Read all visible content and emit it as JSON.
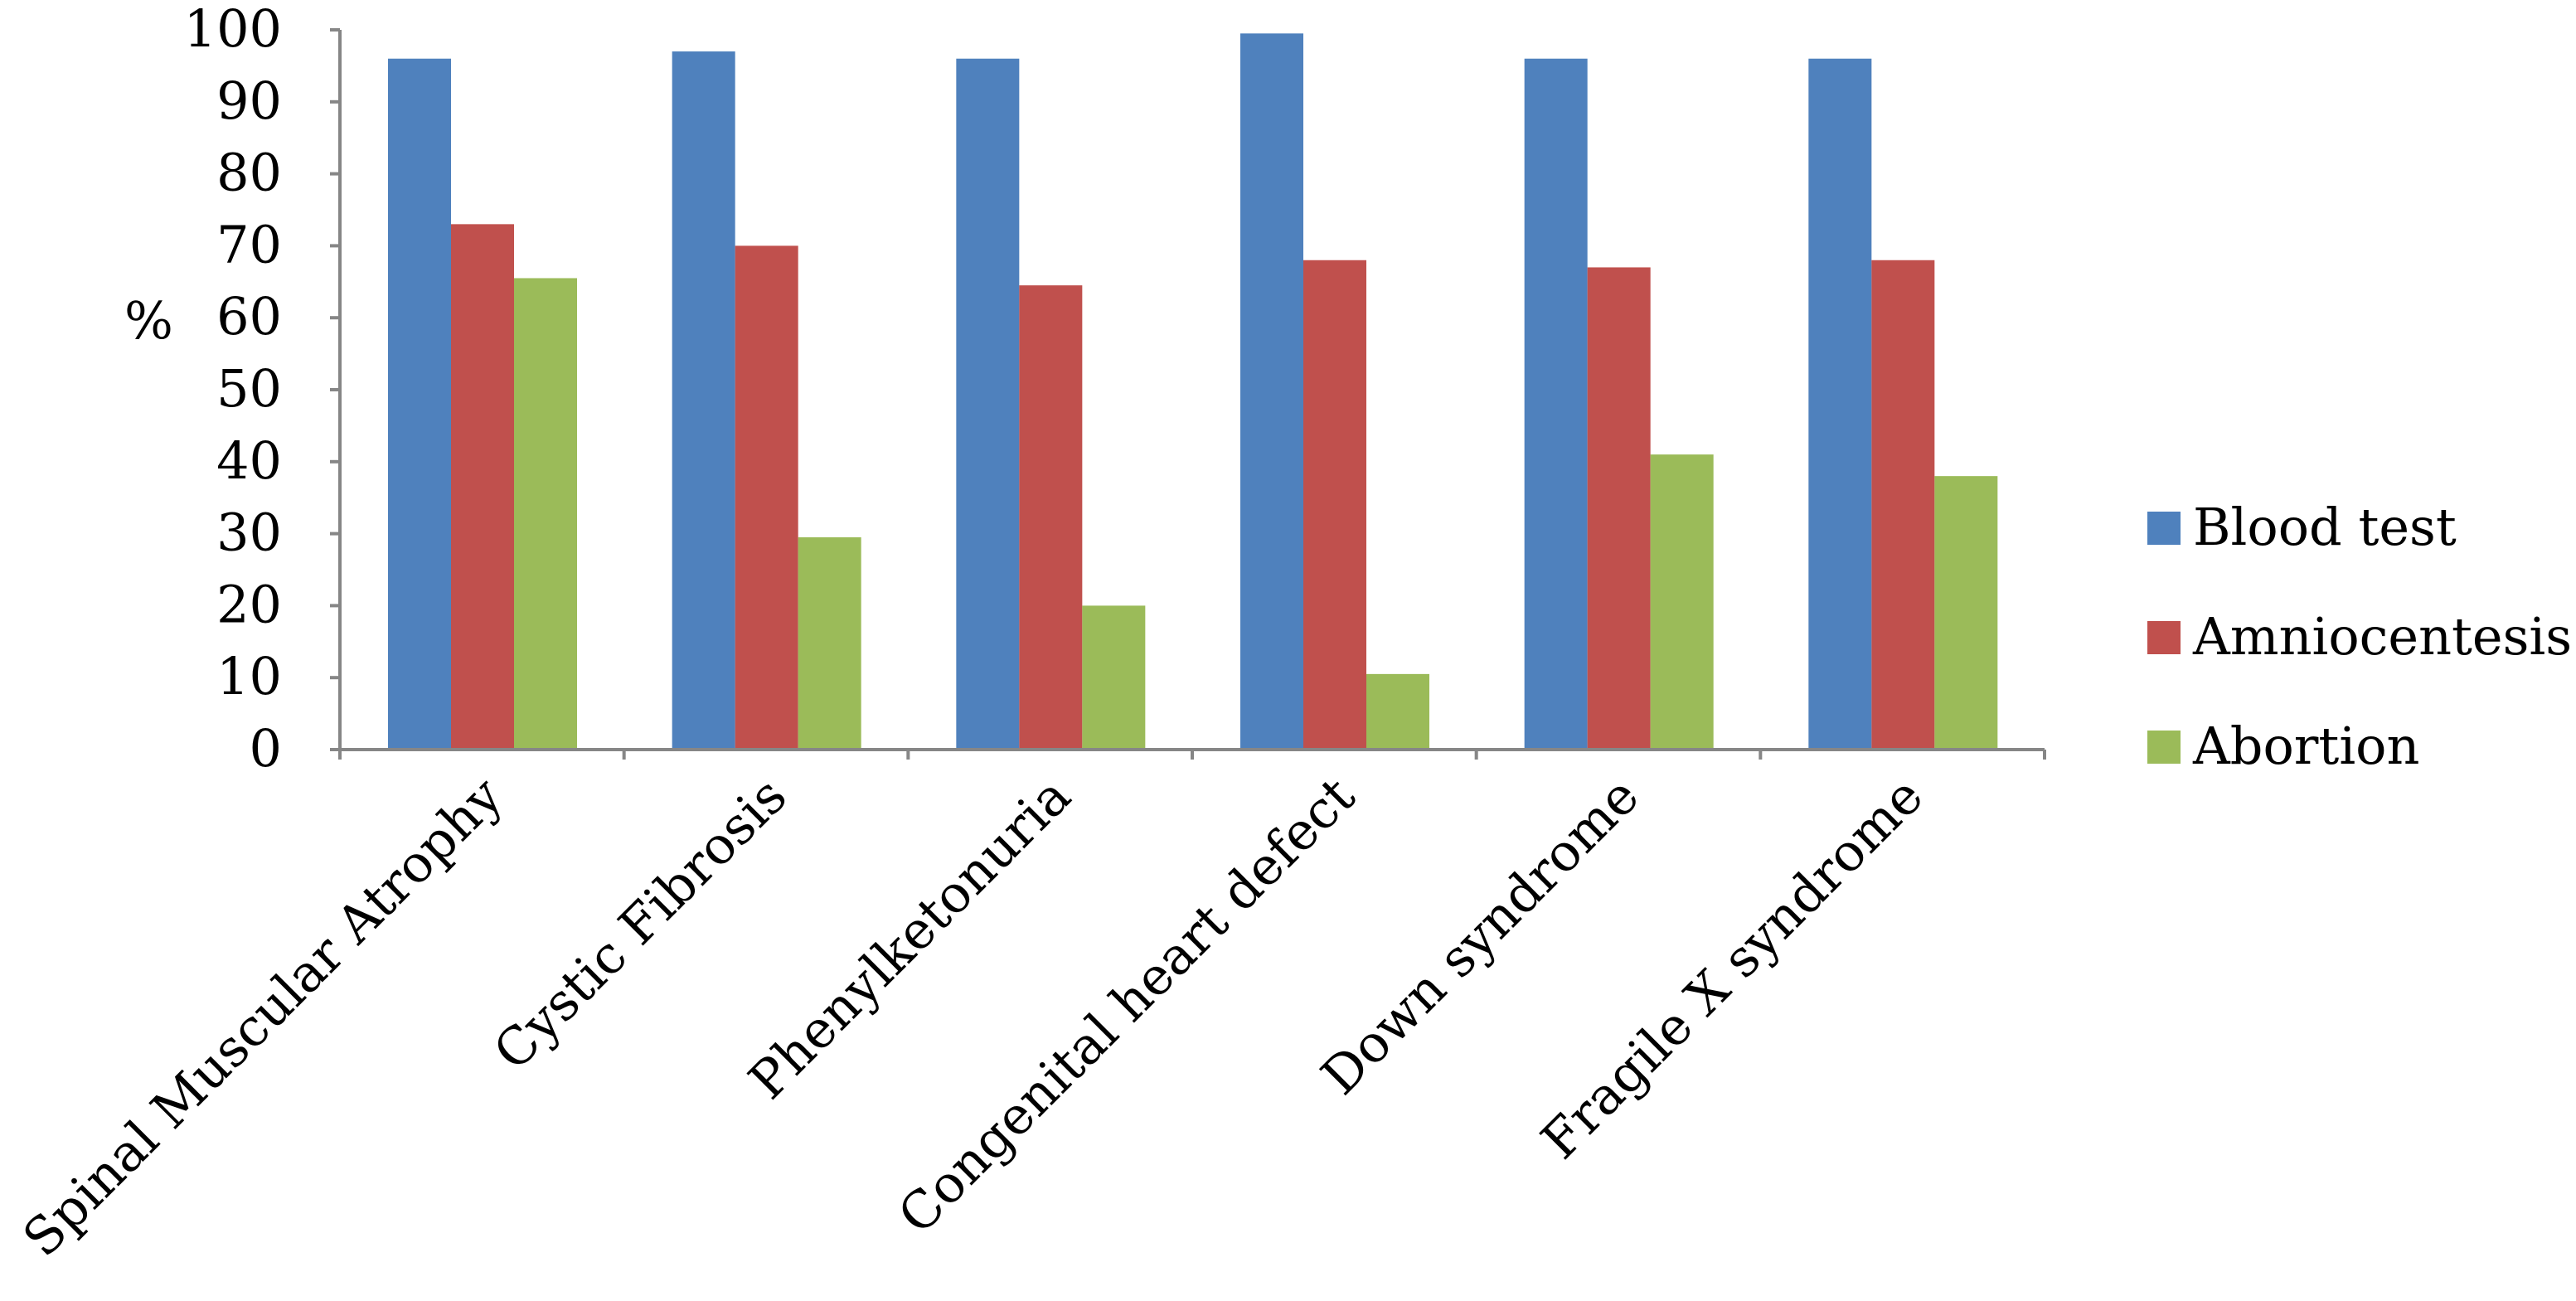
{
  "chart_data": {
    "type": "bar",
    "title": "",
    "xlabel": "",
    "ylabel": "%",
    "ylim": [
      0,
      100
    ],
    "yticks": [
      0,
      10,
      20,
      30,
      40,
      50,
      60,
      70,
      80,
      90,
      100
    ],
    "grid": false,
    "legend_position": "right",
    "categories": [
      "Spinal Muscular Atrophy",
      "Cystic Fibrosis",
      "Phenylketonuria",
      "Congenital heart defect",
      "Down syndrome",
      "Fragile X syndrome"
    ],
    "series": [
      {
        "name": "Blood test",
        "color": "#4F81BD",
        "values": [
          96,
          97,
          96,
          99.5,
          96,
          96
        ]
      },
      {
        "name": "Amniocentesis",
        "color": "#C0504D",
        "values": [
          73,
          70,
          64.5,
          68,
          67,
          68
        ]
      },
      {
        "name": "Abortion",
        "color": "#9BBB59",
        "values": [
          65.5,
          29.5,
          20,
          10.5,
          41,
          38
        ]
      }
    ]
  }
}
